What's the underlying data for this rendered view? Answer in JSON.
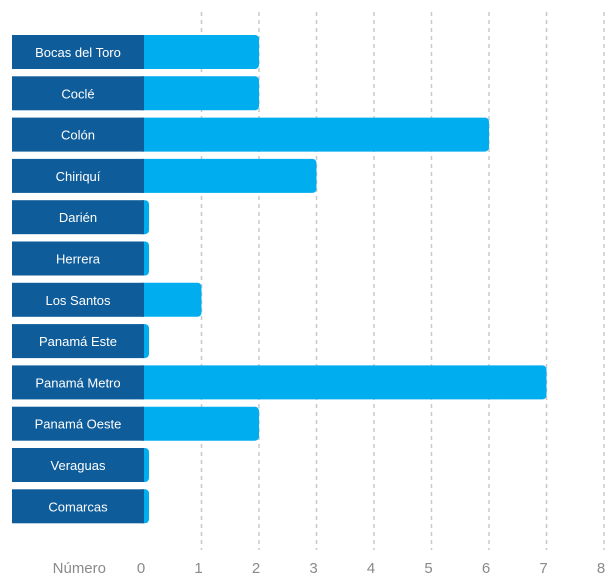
{
  "chart_data": {
    "type": "bar",
    "orientation": "horizontal",
    "categories": [
      "Bocas del Toro",
      "Coclé",
      "Colón",
      "Chiriquí",
      "Darién",
      "Herrera",
      "Los Santos",
      "Panamá Este",
      "Panamá Metro",
      "Panamá Oeste",
      "Veraguas",
      "Comarcas"
    ],
    "values": [
      2,
      2,
      6,
      3,
      0,
      0,
      1,
      0,
      7,
      2,
      0,
      0
    ],
    "xlabel": "Número",
    "xlim": [
      0,
      8
    ],
    "xticks": [
      "0",
      "1",
      "2",
      "3",
      "4",
      "5",
      "6",
      "7",
      "8"
    ],
    "grid": "vertical-dashed",
    "colors": {
      "label_box": "#0e5c9a",
      "bar": "#00aeef",
      "grid": "#c8c8c8",
      "tick_text": "#8a8a8a"
    }
  }
}
